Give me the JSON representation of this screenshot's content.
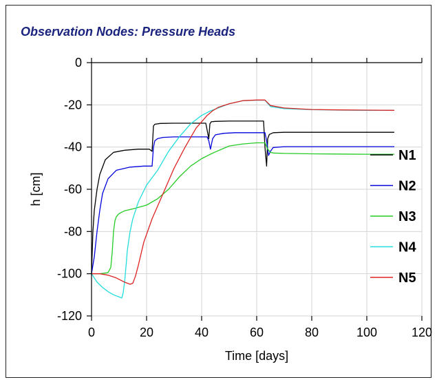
{
  "chart_data": {
    "type": "line",
    "title": "Observation Nodes: Pressure Heads",
    "xlabel": "Time [days]",
    "ylabel": "h [cm]",
    "xlim": [
      0,
      120
    ],
    "ylim": [
      -120,
      0
    ],
    "xticks": [
      0,
      20,
      40,
      60,
      80,
      100,
      120
    ],
    "yticks": [
      0,
      -20,
      -40,
      -60,
      -80,
      -100,
      -120
    ],
    "grid": true,
    "legend_position": "right",
    "series": [
      {
        "name": "N1",
        "color": "#000000",
        "x": [
          0,
          0.5,
          1,
          2,
          3,
          5,
          8,
          12,
          17,
          21,
          21.5,
          22,
          22.5,
          23,
          25,
          30,
          35,
          41.5,
          42,
          42.6,
          43,
          43.5,
          45,
          50,
          55,
          60,
          62.5,
          63,
          63.6,
          64,
          64.6,
          66,
          70,
          80,
          90,
          100,
          110
        ],
        "y": [
          -100,
          -80,
          -70,
          -60,
          -53,
          -46,
          -42.5,
          -41.5,
          -41,
          -41,
          -41.5,
          -42,
          -30,
          -29.2,
          -28.8,
          -28.7,
          -28.7,
          -28.7,
          -32,
          -36,
          -29,
          -28,
          -27.8,
          -27.7,
          -27.7,
          -27.7,
          -27.7,
          -40,
          -49,
          -36,
          -34,
          -33.2,
          -33,
          -33,
          -33,
          -33,
          -33
        ]
      },
      {
        "name": "N2",
        "color": "#0000dd",
        "x": [
          0,
          1,
          2,
          3,
          4,
          6,
          9,
          14,
          19,
          22,
          22.5,
          23,
          24,
          26,
          30,
          35,
          40,
          42,
          42.6,
          43.2,
          44,
          45,
          48,
          52,
          58,
          63,
          63.6,
          64.3,
          65,
          66,
          70,
          80,
          90,
          100,
          110
        ],
        "y": [
          -100,
          -92,
          -80,
          -70,
          -62,
          -55,
          -51,
          -49.5,
          -49,
          -49,
          -40,
          -37,
          -36,
          -35.4,
          -35.2,
          -35.2,
          -35.2,
          -35.2,
          -37,
          -41,
          -36,
          -34.2,
          -33.5,
          -33.2,
          -33.2,
          -33.2,
          -37,
          -44,
          -42,
          -40.2,
          -39.8,
          -39.8,
          -39.8,
          -39.8,
          -39.8
        ]
      },
      {
        "name": "N3",
        "color": "#22cc22",
        "x": [
          0,
          3,
          6,
          7,
          7.5,
          8,
          8.5,
          9,
          10,
          12,
          15,
          20,
          24,
          28,
          32,
          36,
          40,
          43,
          45,
          50,
          55,
          60,
          63,
          64,
          65,
          66,
          70,
          80,
          90,
          100,
          110
        ],
        "y": [
          -100,
          -100,
          -99.5,
          -97,
          -90,
          -80,
          -75,
          -73,
          -71.5,
          -70.2,
          -69.3,
          -67.5,
          -64.5,
          -60,
          -54,
          -49,
          -45.5,
          -43.5,
          -42.3,
          -39.5,
          -38.5,
          -38,
          -38,
          -41,
          -42.5,
          -42.8,
          -43,
          -43.2,
          -43.3,
          -43.4,
          -43.4
        ]
      },
      {
        "name": "N4",
        "color": "#22dddd",
        "x": [
          0,
          2,
          4,
          6,
          8,
          10,
          11,
          11.5,
          12,
          12.5,
          13,
          14,
          15,
          17,
          20,
          24,
          28,
          32,
          36,
          40,
          43,
          46,
          50,
          55,
          60,
          63,
          65,
          70,
          80,
          90,
          100,
          110
        ],
        "y": [
          -100,
          -104,
          -106.5,
          -108.5,
          -110,
          -111,
          -111.5,
          -109,
          -104,
          -97,
          -89,
          -80,
          -74,
          -66,
          -58,
          -51,
          -42,
          -35,
          -29,
          -25,
          -23,
          -21.5,
          -19.5,
          -18,
          -17.8,
          -17.8,
          -20.8,
          -21.8,
          -22.3,
          -22.5,
          -22.6,
          -22.6
        ]
      },
      {
        "name": "N5",
        "color": "#dd2222",
        "x": [
          0,
          3,
          6,
          9,
          12,
          14,
          15,
          16,
          17,
          19,
          22,
          26,
          30,
          34,
          38,
          42,
          44,
          46,
          50,
          55,
          60,
          63,
          65,
          70,
          80,
          90,
          100,
          110
        ],
        "y": [
          -100,
          -100,
          -100.7,
          -102,
          -104,
          -105,
          -104.5,
          -101,
          -96,
          -85,
          -74,
          -62,
          -50,
          -40,
          -31,
          -25,
          -22.8,
          -21.2,
          -19.5,
          -18,
          -17.7,
          -17.7,
          -20.3,
          -21.5,
          -22.2,
          -22.4,
          -22.5,
          -22.6
        ]
      }
    ]
  }
}
